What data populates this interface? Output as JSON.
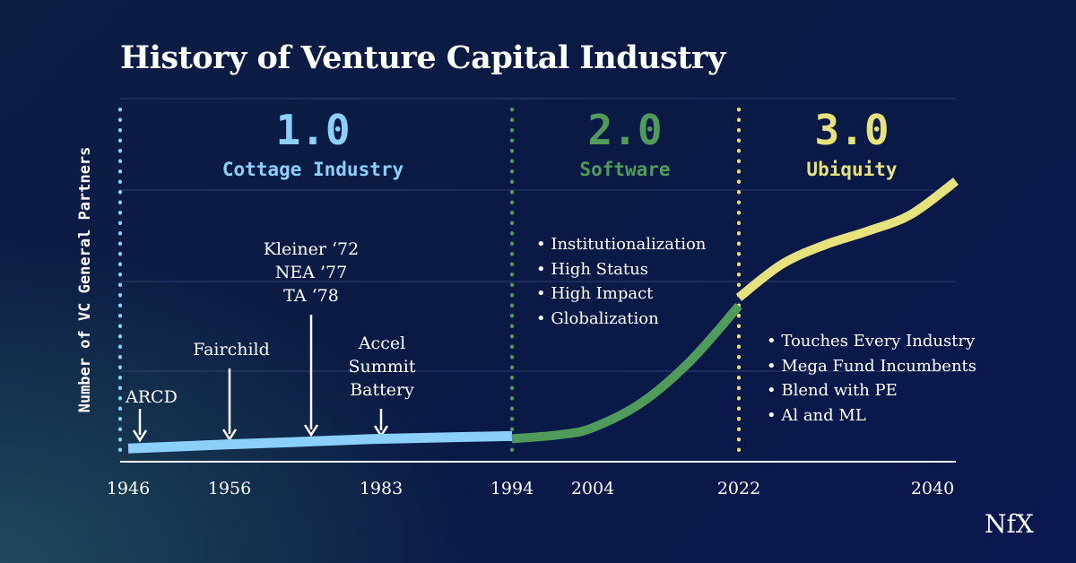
{
  "title": "History of Venture Capital Industry",
  "logo": "NfX",
  "colors": {
    "era1": "#8ad0fa",
    "era2": "#4f9c5a",
    "era3": "#e6e27c",
    "grid": "#2f3f6e",
    "axis": "#ffffff"
  },
  "eras": [
    {
      "number": "1.0",
      "name": "Cottage Industry",
      "color": "#8ad0fa"
    },
    {
      "number": "2.0",
      "name": "Software",
      "color": "#4f9c5a"
    },
    {
      "number": "3.0",
      "name": "Ubiquity",
      "color": "#e6e27c"
    }
  ],
  "annotations": {
    "arcd": "ARCD",
    "fairchild": "Fairchild",
    "kleiner": [
      "Kleiner ‘72",
      "NEA ’77",
      "TA ‘78"
    ],
    "accel": [
      "Accel",
      "Summit",
      "Battery"
    ]
  },
  "bullets": {
    "era2": [
      "Institutionalization",
      "High Status",
      "High Impact",
      "Globalization"
    ],
    "era3": [
      "Touches Every Industry",
      "Mega Fund Incumbents",
      "Blend with PE",
      "Al and ML"
    ]
  },
  "chart_data": {
    "type": "line",
    "title": "History of Venture Capital Industry",
    "xlabel": "",
    "ylabel": "Number of VC General Partners",
    "x_ticks": [
      "1946",
      "1956",
      "1983",
      "1994",
      "2004",
      "2022",
      "2040"
    ],
    "x_tick_values": [
      1946,
      1956,
      1983,
      1994,
      2004,
      2022,
      2040
    ],
    "xlim": [
      1945,
      2043
    ],
    "ylim": [
      0,
      100
    ],
    "grid": true,
    "era_boundaries": [
      1946,
      1994,
      2022
    ],
    "series": [
      {
        "segment": "1.0",
        "color": "#8ad0fa",
        "x": [
          1946,
          1956,
          1970,
          1983,
          1994
        ],
        "y": [
          2.5,
          4,
          5,
          6,
          7
        ]
      },
      {
        "segment": "2.0",
        "color": "#4f9c5a",
        "x": [
          1994,
          2000,
          2004,
          2010,
          2016,
          2022
        ],
        "y": [
          6,
          7.5,
          10,
          19,
          34,
          54
        ]
      },
      {
        "segment": "3.0",
        "color": "#e6e27c",
        "x": [
          2022,
          2026,
          2030,
          2034,
          2038,
          2043
        ],
        "y": [
          57,
          69,
          76,
          81,
          87,
          99
        ]
      }
    ]
  }
}
